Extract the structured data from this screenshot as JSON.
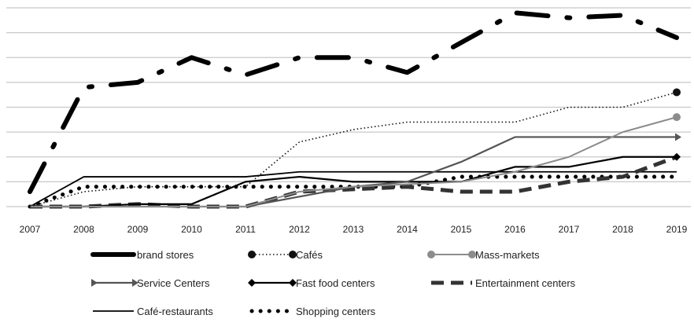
{
  "chart_data": {
    "type": "line",
    "x": [
      "2007",
      "2008",
      "2009",
      "2010",
      "2011",
      "2012",
      "2013",
      "2014",
      "2015",
      "2016",
      "2017",
      "2018",
      "2019"
    ],
    "ylim": [
      0,
      8
    ],
    "grid": true,
    "y_tick_labels_visible": false,
    "legend_position": "bottom",
    "series": [
      {
        "name": "brand stores",
        "color": "#000000",
        "style": "long-dash-dot-thick",
        "values": [
          0.6,
          4.8,
          5,
          6,
          5.3,
          6,
          6,
          5.4,
          6.6,
          7.8,
          7.6,
          7.7,
          6.8
        ]
      },
      {
        "name": "Cafés",
        "color": "#111111",
        "style": "dotted-with-end-markers",
        "values": [
          0,
          0.6,
          0.8,
          0.8,
          0.8,
          2.6,
          3.1,
          3.4,
          3.4,
          3.4,
          4,
          4,
          4.6
        ]
      },
      {
        "name": "Mass-markets",
        "color": "#8c8c8c",
        "style": "solid-with-end-markers",
        "values": [
          0,
          0,
          0,
          0,
          0,
          0.6,
          0.8,
          0.9,
          1,
          1.4,
          2,
          3,
          3.6
        ]
      },
      {
        "name": "Service Centers",
        "color": "#555555",
        "style": "solid-arrow-end",
        "values": [
          0,
          0,
          0,
          0,
          0,
          0.4,
          0.8,
          1,
          1.8,
          2.8,
          2.8,
          2.8,
          2.8
        ]
      },
      {
        "name": "Fast food centers",
        "color": "#000000",
        "style": "solid-diamond-end",
        "values": [
          0,
          0,
          0.1,
          0.1,
          1,
          1.2,
          1,
          1,
          1,
          1.6,
          1.6,
          2,
          2
        ]
      },
      {
        "name": "Entertainment centers",
        "color": "#333333",
        "style": "thick-dash",
        "values": [
          0,
          0,
          0.1,
          0,
          0,
          0.6,
          0.7,
          0.8,
          0.6,
          0.6,
          1,
          1.2,
          2
        ]
      },
      {
        "name": "Café-restaurants",
        "color": "#000000",
        "style": "thin-solid",
        "values": [
          0,
          1.2,
          1.2,
          1.2,
          1.2,
          1.4,
          1.4,
          1.4,
          1.4,
          1.4,
          1.4,
          1.4,
          1.4
        ]
      },
      {
        "name": "Shopping centers",
        "color": "#000000",
        "style": "round-dots",
        "values": [
          0,
          0.8,
          0.8,
          0.8,
          0.8,
          0.8,
          0.8,
          0.8,
          1.2,
          1.2,
          1.2,
          1.2,
          1.2
        ]
      }
    ]
  }
}
